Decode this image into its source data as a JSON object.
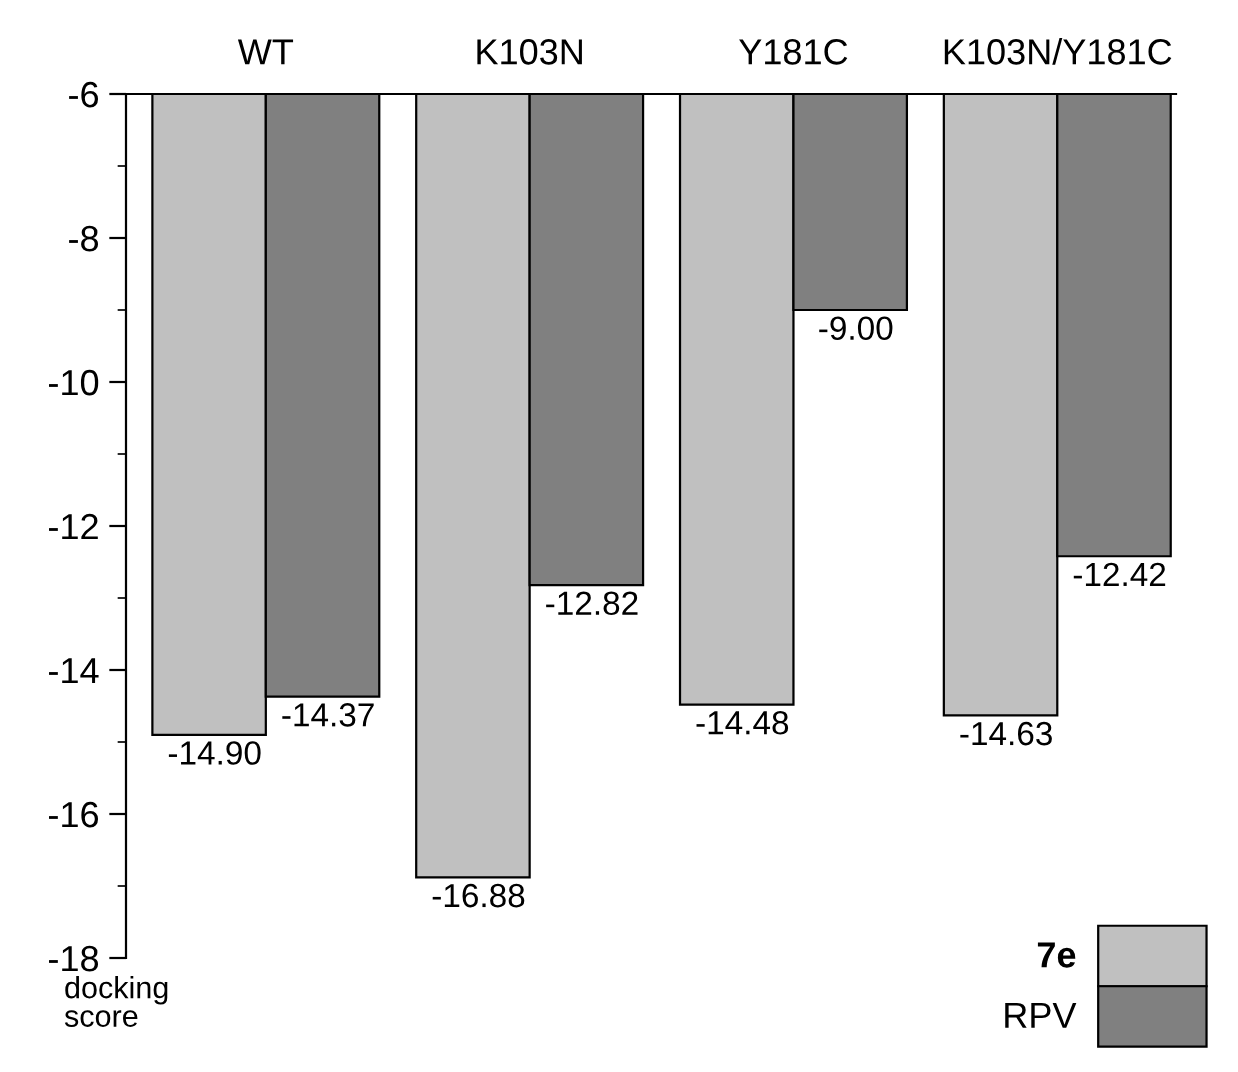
{
  "chart_data": {
    "type": "bar",
    "categories": [
      "WT",
      "K103N",
      "Y181C",
      "K103N/Y181C"
    ],
    "series": [
      {
        "name": "7e",
        "color": "#c0c0c0",
        "values": [
          -14.9,
          -16.88,
          -14.48,
          -14.63
        ],
        "value_labels": [
          "-14.90",
          "-16.88",
          "-14.48",
          "-14.63"
        ]
      },
      {
        "name": "RPV",
        "color": "#808080",
        "values": [
          -14.37,
          -12.82,
          -9.0,
          -12.42
        ],
        "value_labels": [
          "-14.37",
          "-12.82",
          "-9.00",
          "-12.42"
        ]
      }
    ],
    "ylabel": "docking score",
    "ylim": [
      -18,
      -6
    ],
    "yticks": [
      -18,
      -16,
      -14,
      -12,
      -10,
      -8,
      -6
    ],
    "grid": false,
    "legend": "bottom right"
  }
}
